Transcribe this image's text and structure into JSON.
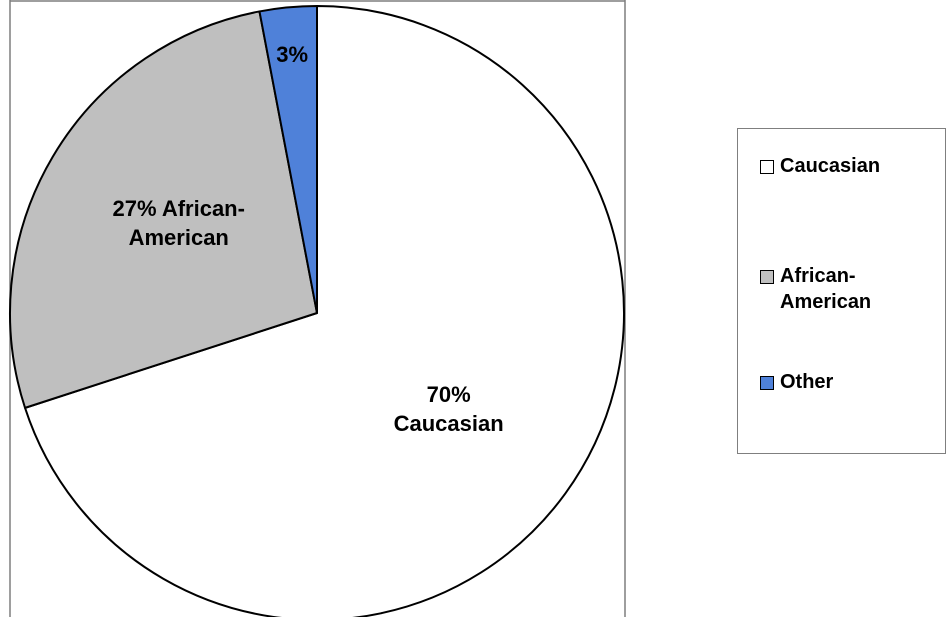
{
  "chart_data": {
    "type": "pie",
    "title": "",
    "slices": [
      {
        "name": "Caucasian",
        "value": 70,
        "color": "#ffffff",
        "label_line1": "70%",
        "label_line2": "Caucasian"
      },
      {
        "name": "African-American",
        "value": 27,
        "color": "#bfbfbf",
        "label_line1": "27% African-",
        "label_line2": "American"
      },
      {
        "name": "Other",
        "value": 3,
        "color": "#4f81d9",
        "label_line1": "3%",
        "label_line2": ""
      }
    ],
    "start_angle": "12 o'clock",
    "direction": "clockwise",
    "legend_position": "right",
    "legend": [
      {
        "label": "Caucasian",
        "color": "#ffffff"
      },
      {
        "label": "African-American",
        "color": "#bfbfbf"
      },
      {
        "label": "Other",
        "color": "#4f81d9"
      }
    ]
  }
}
